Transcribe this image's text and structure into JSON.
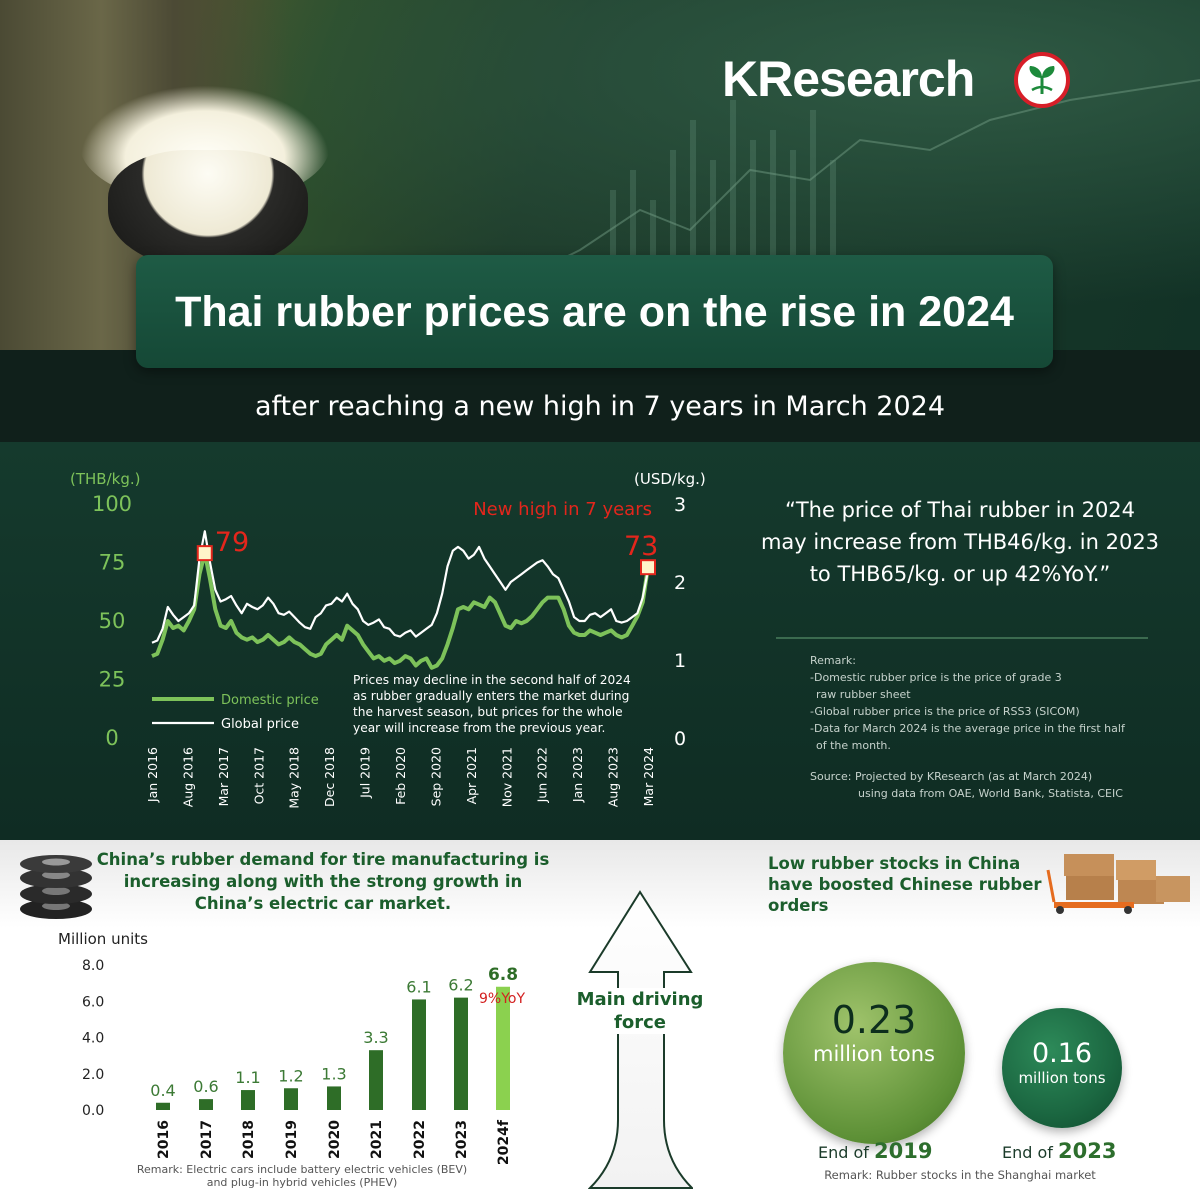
{
  "brand": "KResearch",
  "hero": {
    "title": "Thai rubber prices are on the rise in 2024",
    "subtitle": "after reaching a new high in 7 years in March 2024"
  },
  "quote": "“The price of Thai rubber in 2024 may increase from THB46/kg. in 2023 to THB65/kg. or up 42%YoY.”",
  "remark": {
    "heading": "Remark:",
    "lines": [
      "-Domestic rubber price is the price of grade 3",
      "raw rubber sheet",
      "-Global rubber price is the price of RSS3 (SICOM)",
      "-Data for March 2024 is the average price in the first half",
      "of the month."
    ],
    "source1": "Source: Projected by KResearch (as at March 2024)",
    "source2": "using data from OAE, World Bank, Statista, CEIC"
  },
  "chart_data": [
    {
      "type": "line",
      "left_unit": "(THB/kg.)",
      "right_unit": "(USD/kg.)",
      "left_ylim": [
        0,
        100
      ],
      "right_ylim": [
        0,
        3
      ],
      "left_ticks": [
        "100",
        "75",
        "50",
        "25",
        "0"
      ],
      "right_ticks": [
        "3",
        "2",
        "1",
        "0"
      ],
      "x_ticks": [
        "Jan 2016",
        "Aug 2016",
        "Mar 2017",
        "Oct 2017",
        "May 2018",
        "Dec 2018",
        "Jul 2019",
        "Feb 2020",
        "Sep 2020",
        "Apr 2021",
        "Nov 2021",
        "Jun 2022",
        "Jan 2023",
        "Aug 2023",
        "Mar 2024"
      ],
      "series": [
        {
          "name": "Domestic price",
          "color": "#7dc25a",
          "axis": "left",
          "values": [
            35,
            36,
            42,
            50,
            47,
            48,
            46,
            50,
            55,
            70,
            79,
            68,
            55,
            48,
            47,
            50,
            45,
            43,
            42,
            43,
            41,
            42,
            44,
            42,
            40,
            41,
            43,
            41,
            40,
            38,
            36,
            35,
            36,
            40,
            42,
            44,
            42,
            48,
            46,
            44,
            40,
            37,
            34,
            35,
            33,
            34,
            32,
            33,
            35,
            34,
            31,
            33,
            34,
            30,
            31,
            34,
            40,
            47,
            55,
            56,
            55,
            58,
            57,
            56,
            60,
            58,
            53,
            48,
            47,
            50,
            49,
            50,
            52,
            55,
            58,
            60,
            60,
            60,
            55,
            48,
            45,
            44,
            44,
            46,
            45,
            44,
            45,
            46,
            44,
            43,
            44,
            48,
            52,
            58,
            73
          ]
        },
        {
          "name": "Global price",
          "color": "#ffffff",
          "axis": "right",
          "values": [
            1.22,
            1.25,
            1.4,
            1.68,
            1.58,
            1.5,
            1.55,
            1.6,
            1.7,
            2.3,
            2.65,
            2.25,
            1.9,
            1.75,
            1.78,
            1.82,
            1.7,
            1.6,
            1.72,
            1.68,
            1.65,
            1.7,
            1.8,
            1.72,
            1.6,
            1.58,
            1.62,
            1.55,
            1.48,
            1.42,
            1.4,
            1.55,
            1.6,
            1.7,
            1.72,
            1.8,
            1.75,
            1.85,
            1.72,
            1.65,
            1.5,
            1.45,
            1.48,
            1.52,
            1.42,
            1.4,
            1.32,
            1.3,
            1.35,
            1.38,
            1.3,
            1.35,
            1.4,
            1.45,
            1.6,
            1.85,
            2.2,
            2.4,
            2.45,
            2.4,
            2.3,
            2.35,
            2.45,
            2.3,
            2.2,
            2.1,
            2.0,
            1.9,
            2.0,
            2.05,
            2.1,
            2.15,
            2.2,
            2.25,
            2.28,
            2.2,
            2.1,
            2.05,
            1.9,
            1.75,
            1.55,
            1.5,
            1.5,
            1.58,
            1.6,
            1.55,
            1.6,
            1.65,
            1.5,
            1.48,
            1.5,
            1.55,
            1.6,
            1.8,
            2.15
          ]
        }
      ],
      "annotations": {
        "peak_label": "79",
        "latest_label": "73",
        "new_high": "New high in 7 years",
        "note": "Prices may decline in the second half of 2024 as rubber gradually enters the market during the harvest season, but prices for the whole year will increase from the previous year."
      }
    },
    {
      "type": "bar",
      "ylabel": "Million units",
      "ylim": [
        0,
        8
      ],
      "yticks": [
        "8.0",
        "6.0",
        "4.0",
        "2.0",
        "0.0"
      ],
      "categories": [
        "2016",
        "2017",
        "2018",
        "2019",
        "2020",
        "2021",
        "2022",
        "2023",
        "2024f"
      ],
      "values": [
        0.4,
        0.6,
        1.1,
        1.2,
        1.3,
        3.3,
        6.1,
        6.2,
        6.8
      ],
      "value_labels": [
        "0.4",
        "0.6",
        "1.1",
        "1.2",
        "1.3",
        "3.3",
        "6.1",
        "6.2",
        "6.8"
      ],
      "yoy_label": "9%YoY",
      "remark": "Remark: Electric cars include battery electric vehicles (BEV) and plug-in hybrid vehicles (PHEV)"
    }
  ],
  "left_section_heading": "China’s rubber demand for tire manufacturing is increasing along with the strong growth in China’s electric car market.",
  "driving_force": "Main driving force",
  "right_section_heading": "Low rubber stocks in China have boosted Chinese rubber orders",
  "stocks": {
    "s1": {
      "value": "0.23",
      "unit": "million tons",
      "label_prefix": "End of",
      "year": "2019"
    },
    "s2": {
      "value": "0.16",
      "unit": "million tons",
      "label_prefix": "End of",
      "year": "2023"
    },
    "remark": "Remark: Rubber stocks in the Shanghai market"
  },
  "colors": {
    "accent_green": "#1b5e2c",
    "domestic": "#7dc25a",
    "global": "#ffffff",
    "highlight_red": "#e3261c"
  }
}
